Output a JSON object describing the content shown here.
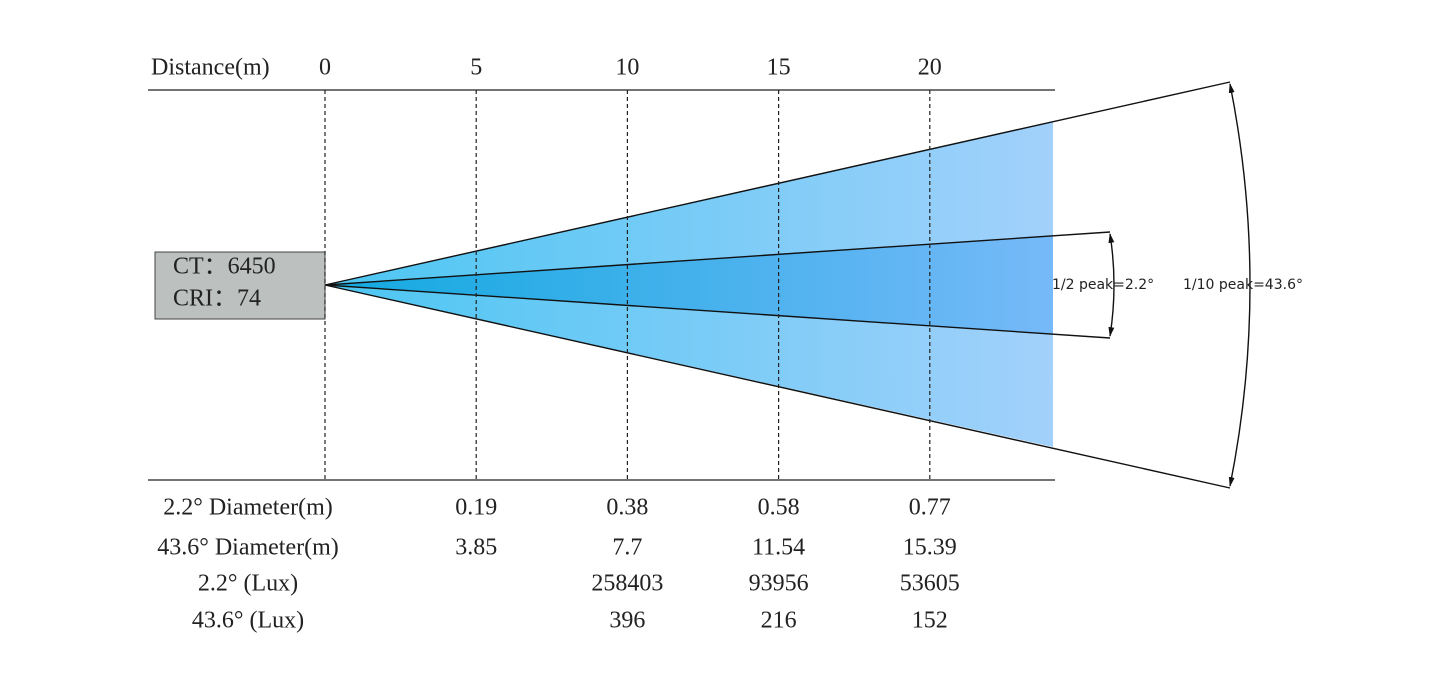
{
  "distance_axis": {
    "label": "Distance(m)",
    "ticks": [
      "0",
      "5",
      "10",
      "15",
      "20"
    ]
  },
  "source": {
    "lines": [
      "CT：6450",
      "CRI：74"
    ]
  },
  "beam_labels": {
    "half_peak": "1/2 peak=2.2°",
    "tenth_peak": "1/10 peak=43.6°"
  },
  "table": {
    "rows": [
      {
        "label": "2.2° Diameter(m)",
        "cells": [
          "0.19",
          "0.38",
          "0.58",
          "0.77"
        ]
      },
      {
        "label": "43.6° Diameter(m)",
        "cells": [
          "3.85",
          "7.7",
          "11.54",
          "15.39"
        ]
      },
      {
        "label": "2.2° (Lux)",
        "cells": [
          null,
          "258403",
          "93956",
          "53605"
        ]
      },
      {
        "label": "43.6° (Lux)",
        "cells": [
          null,
          "396",
          "216",
          "152"
        ]
      }
    ]
  }
}
